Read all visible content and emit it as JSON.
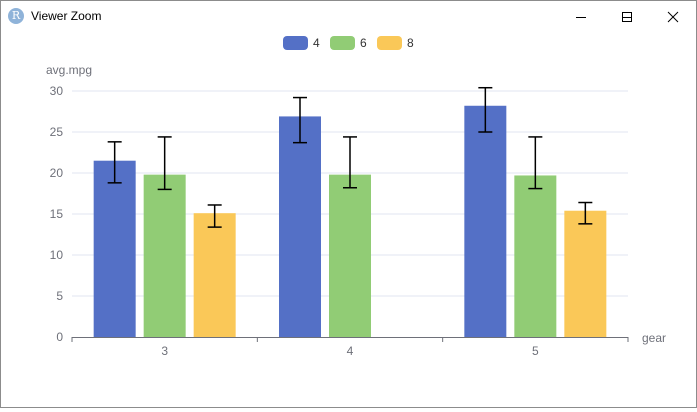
{
  "window": {
    "title": "Viewer Zoom",
    "icon_letter": "R",
    "buttons": [
      "minimize-icon",
      "maximize-icon",
      "close-icon"
    ]
  },
  "chart_data": {
    "type": "bar",
    "categories": [
      "3",
      "4",
      "5"
    ],
    "series": [
      {
        "name": "4",
        "color": "#5470c6",
        "values": [
          21.5,
          26.9,
          28.2
        ],
        "err_low": [
          18.8,
          23.7,
          25.0
        ],
        "err_high": [
          23.8,
          29.2,
          30.4
        ]
      },
      {
        "name": "6",
        "color": "#91cc75",
        "values": [
          19.8,
          19.8,
          19.7
        ],
        "err_low": [
          18.0,
          18.2,
          18.1
        ],
        "err_high": [
          24.4,
          24.4,
          24.4
        ]
      },
      {
        "name": "8",
        "color": "#fac858",
        "values": [
          15.1,
          null,
          15.4
        ],
        "err_low": [
          13.4,
          null,
          13.8
        ],
        "err_high": [
          16.1,
          null,
          16.4
        ]
      }
    ],
    "xlabel": "gear",
    "ylabel": "avg.mpg",
    "ylim": [
      0,
      30
    ],
    "yticks": [
      0,
      5,
      10,
      15,
      20,
      25,
      30
    ],
    "grid": true,
    "legend": "top-center"
  }
}
